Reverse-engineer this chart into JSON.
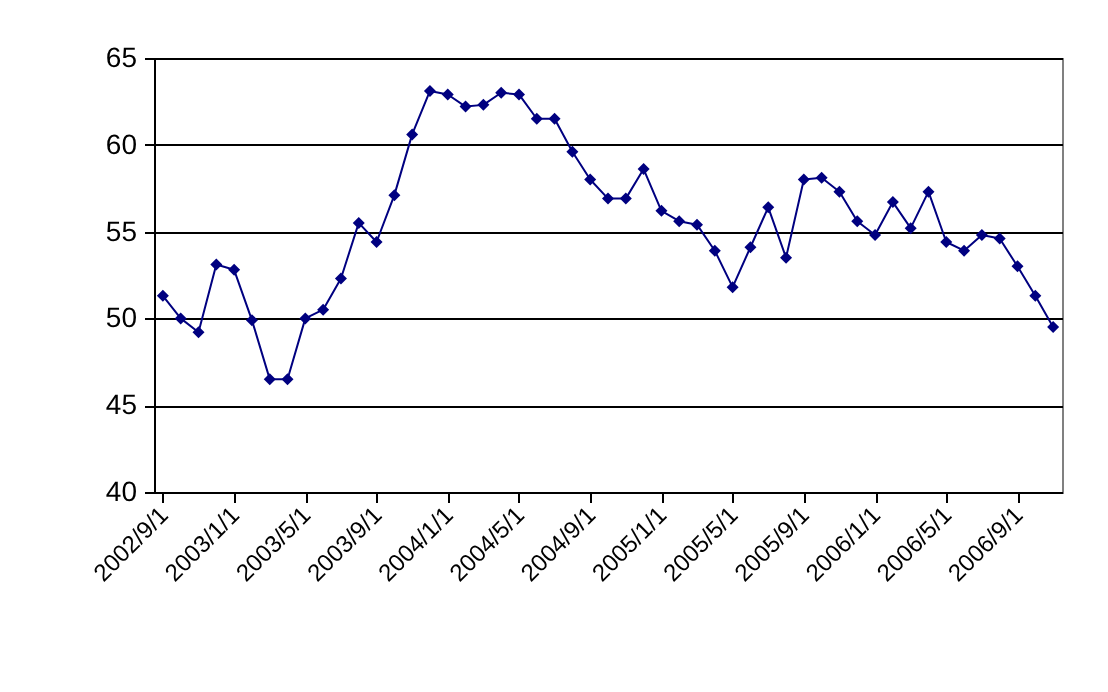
{
  "chart_data": {
    "type": "line",
    "categories": [
      "2002/9/1",
      null,
      null,
      null,
      "2003/1/1",
      null,
      null,
      null,
      "2003/5/1",
      null,
      null,
      null,
      "2003/9/1",
      null,
      null,
      null,
      "2004/1/1",
      null,
      null,
      null,
      "2004/5/1",
      null,
      null,
      null,
      "2004/9/1",
      null,
      null,
      null,
      "2005/1/1",
      null,
      null,
      null,
      "2005/5/1",
      null,
      null,
      null,
      "2005/9/1",
      null,
      null,
      null,
      "2006/1/1",
      null,
      null,
      null,
      "2006/5/1",
      null,
      null,
      null,
      "2006/9/1",
      null,
      null
    ],
    "series": [
      {
        "color": "#000080",
        "values": [
          51.3,
          50.0,
          49.2,
          53.1,
          52.8,
          49.9,
          46.5,
          46.5,
          50.0,
          50.5,
          52.3,
          55.5,
          54.4,
          57.1,
          60.6,
          63.1,
          62.9,
          62.2,
          62.3,
          63.0,
          62.9,
          61.5,
          61.5,
          59.6,
          58.0,
          56.9,
          56.9,
          58.6,
          56.2,
          55.6,
          55.4,
          53.9,
          51.8,
          54.1,
          56.4,
          53.5,
          58.0,
          58.1,
          57.3,
          55.6,
          54.8,
          56.7,
          55.2,
          57.3,
          54.4,
          53.9,
          54.8,
          54.6,
          53.0,
          51.3,
          49.5
        ]
      }
    ],
    "ylim": [
      40,
      65
    ],
    "yticks": [
      40,
      45,
      50,
      55,
      60,
      65
    ],
    "grid": "y",
    "marker": "diamond",
    "line_style": "solid"
  }
}
